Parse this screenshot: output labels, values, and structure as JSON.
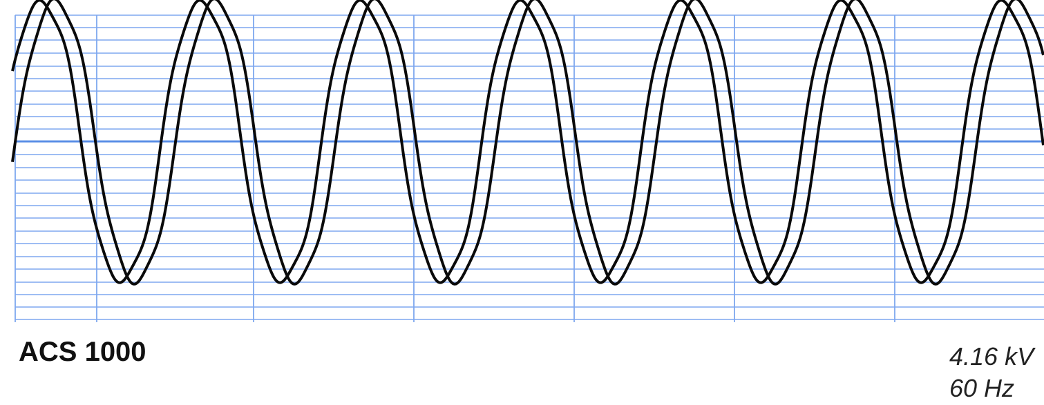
{
  "chart_data": {
    "type": "line",
    "grid": true,
    "colors": {
      "grid": "#7ea7ef",
      "grid_axis": "#5b8fe6",
      "trace": "#0a0a0a",
      "background": "#ffffff"
    },
    "x_cycles": [
      0,
      6
    ],
    "ylim": [
      -1.05,
      1.05
    ],
    "series": [
      {
        "amplitude": 0.96,
        "cycles": 6,
        "phase_lag_cycles": 0.0,
        "harmonic_3": 0.05,
        "harmonic_5": 0.03
      },
      {
        "amplitude": 0.96,
        "cycles": 6,
        "phase_lag_cycles": 0.09,
        "harmonic_3": 0.04,
        "harmonic_5": 0.03
      }
    ]
  },
  "labels": {
    "drive": "ACS 1000",
    "voltage": "4.16 kV",
    "frequency": "60 Hz"
  }
}
